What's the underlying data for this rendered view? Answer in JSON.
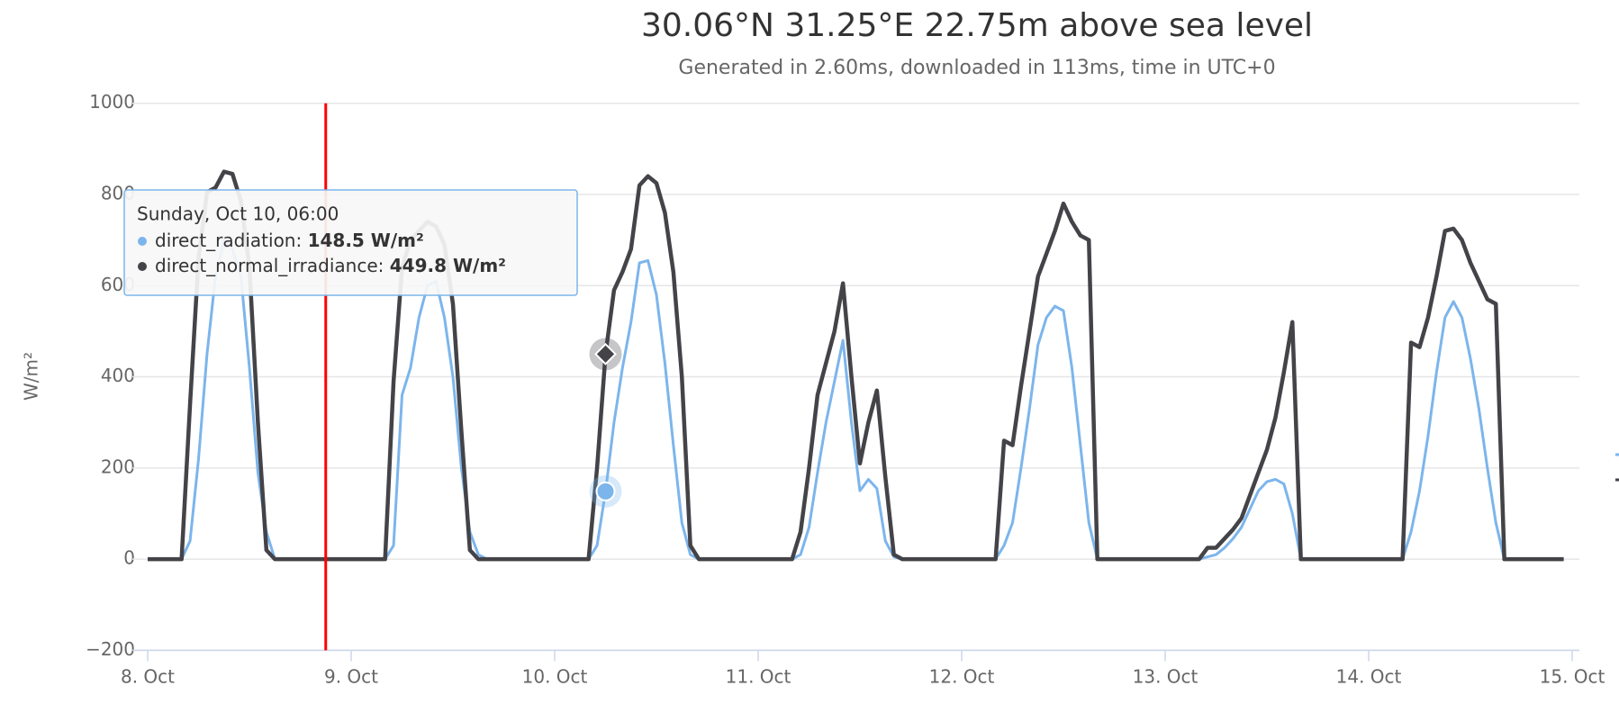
{
  "chart_data": {
    "type": "line",
    "title": "30.06°N 31.25°E 22.75m above sea level",
    "subtitle": "Generated in 2.60ms, downloaded in 113ms, time in UTC+0",
    "y_label": "W/m²",
    "x": [
      0,
      4,
      5,
      6,
      7,
      8,
      9,
      10,
      11,
      12,
      13,
      14,
      15,
      28,
      29,
      30,
      31,
      32,
      33,
      34,
      35,
      36,
      37,
      38,
      39,
      40,
      52,
      53,
      54,
      55,
      56,
      57,
      58,
      59,
      60,
      61,
      62,
      63,
      64,
      65,
      76,
      77,
      78,
      79,
      80,
      81,
      82,
      83,
      84,
      85,
      86,
      87,
      88,
      89,
      100,
      101,
      102,
      103,
      104,
      105,
      106,
      107,
      108,
      109,
      110,
      111,
      112,
      124,
      125,
      126,
      127,
      128,
      129,
      130,
      131,
      132,
      133,
      134,
      135,
      136,
      148,
      149,
      150,
      151,
      152,
      153,
      154,
      155,
      156,
      157,
      158,
      159,
      160,
      167
    ],
    "series": [
      {
        "name": "direct_radiation",
        "color": "#7cb5ec",
        "values": [
          0,
          0,
          40,
          220,
          450,
          620,
          700,
          680,
          620,
          420,
          190,
          60,
          0,
          0,
          30,
          360,
          420,
          530,
          600,
          610,
          530,
          400,
          200,
          60,
          10,
          0,
          0,
          30,
          148.5,
          300,
          420,
          520,
          650,
          655,
          580,
          430,
          250,
          80,
          10,
          0,
          0,
          10,
          70,
          190,
          300,
          390,
          480,
          300,
          150,
          175,
          155,
          40,
          5,
          0,
          0,
          30,
          80,
          200,
          330,
          470,
          530,
          555,
          545,
          420,
          250,
          80,
          0,
          0,
          5,
          10,
          25,
          45,
          70,
          110,
          150,
          170,
          175,
          165,
          100,
          0,
          0,
          60,
          150,
          270,
          410,
          530,
          565,
          530,
          440,
          330,
          200,
          80,
          0,
          0
        ]
      },
      {
        "name": "direct_normal_irradiance",
        "color": "#434348",
        "values": [
          0,
          0,
          340,
          660,
          805,
          815,
          850,
          845,
          785,
          640,
          300,
          20,
          0,
          0,
          390,
          640,
          700,
          720,
          740,
          730,
          690,
          560,
          280,
          20,
          0,
          0,
          0,
          200,
          449.8,
          590,
          630,
          680,
          820,
          840,
          825,
          760,
          630,
          400,
          30,
          0,
          0,
          60,
          200,
          360,
          430,
          500,
          605,
          400,
          210,
          300,
          370,
          180,
          10,
          0,
          0,
          260,
          250,
          380,
          500,
          620,
          670,
          720,
          780,
          740,
          710,
          700,
          0,
          0,
          25,
          25,
          45,
          65,
          90,
          140,
          190,
          240,
          310,
          410,
          520,
          0,
          0,
          475,
          465,
          530,
          620,
          720,
          725,
          700,
          650,
          610,
          570,
          560,
          0,
          0
        ]
      }
    ],
    "xlim": [
      0,
      168
    ],
    "xticks": [
      {
        "value": 0,
        "label": "8. Oct"
      },
      {
        "value": 24,
        "label": "9. Oct"
      },
      {
        "value": 48,
        "label": "10. Oct"
      },
      {
        "value": 72,
        "label": "11. Oct"
      },
      {
        "value": 96,
        "label": "12. Oct"
      },
      {
        "value": 120,
        "label": "13. Oct"
      },
      {
        "value": 144,
        "label": "14. Oct"
      },
      {
        "value": 168,
        "label": "15. Oct"
      }
    ],
    "ylim": [
      -200,
      1000
    ],
    "yticks": [
      {
        "value": -200,
        "label": "−200"
      },
      0,
      200,
      400,
      600,
      800,
      1000
    ],
    "grid": true,
    "x_marker": {
      "value": 21,
      "color": "#ff0000"
    },
    "tooltip": {
      "x": 54,
      "header": "Sunday, Oct 10, 06:00",
      "rows": [
        {
          "label": "direct_radiation: ",
          "value": "148.5 W/m²"
        },
        {
          "label": "direct_normal_irradiance: ",
          "value": "449.8 W/m²"
        }
      ]
    }
  }
}
